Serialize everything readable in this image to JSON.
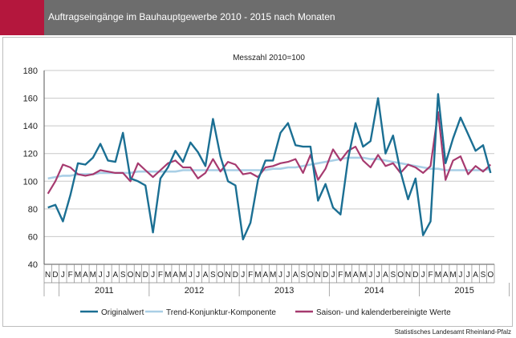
{
  "header": {
    "title": "Auftragseingänge im Bauhauptgewerbe 2010 - 2015 nach Monaten"
  },
  "source": "Statistisches Landesamt Rheinland-Pfalz",
  "colors": {
    "header_bg": "#6d6d6d",
    "accent": "#b4173d",
    "original": "#1b6f93",
    "trend": "#a9cfe6",
    "seasonal": "#a63a6f"
  },
  "chart_data": {
    "type": "line",
    "subtitle": "Messzahl 2010=100",
    "ylim": [
      40,
      180
    ],
    "yticks": [
      40,
      60,
      80,
      100,
      120,
      140,
      160,
      180
    ],
    "grid": true,
    "legend_position": "bottom",
    "month_labels": [
      "N",
      "D",
      "J",
      "F",
      "M",
      "A",
      "M",
      "J",
      "J",
      "A",
      "S",
      "O",
      "N",
      "D",
      "J",
      "F",
      "M",
      "A",
      "M",
      "J",
      "J",
      "A",
      "S",
      "O",
      "N",
      "D",
      "J",
      "F",
      "M",
      "A",
      "M",
      "J",
      "J",
      "A",
      "S",
      "O",
      "N",
      "D",
      "J",
      "F",
      "M",
      "A",
      "M",
      "J",
      "J",
      "A",
      "S",
      "O",
      "N",
      "D",
      "J",
      "F",
      "M",
      "A",
      "M",
      "J",
      "J",
      "A",
      "S",
      "O"
    ],
    "year_labels": [
      "2011",
      "2012",
      "2013",
      "2014",
      "2015"
    ],
    "x": [
      "2010-11",
      "2010-12",
      "2011-01",
      "2011-02",
      "2011-03",
      "2011-04",
      "2011-05",
      "2011-06",
      "2011-07",
      "2011-08",
      "2011-09",
      "2011-10",
      "2011-11",
      "2011-12",
      "2012-01",
      "2012-02",
      "2012-03",
      "2012-04",
      "2012-05",
      "2012-06",
      "2012-07",
      "2012-08",
      "2012-09",
      "2012-10",
      "2012-11",
      "2012-12",
      "2013-01",
      "2013-02",
      "2013-03",
      "2013-04",
      "2013-05",
      "2013-06",
      "2013-07",
      "2013-08",
      "2013-09",
      "2013-10",
      "2013-11",
      "2013-12",
      "2014-01",
      "2014-02",
      "2014-03",
      "2014-04",
      "2014-05",
      "2014-06",
      "2014-07",
      "2014-08",
      "2014-09",
      "2014-10",
      "2014-11",
      "2014-12",
      "2015-01",
      "2015-02",
      "2015-03",
      "2015-04",
      "2015-05",
      "2015-06",
      "2015-07",
      "2015-08",
      "2015-09",
      "2015-10"
    ],
    "series": [
      {
        "name": "Originalwert",
        "values": [
          81,
          83,
          71,
          90,
          113,
          112,
          117,
          127,
          115,
          114,
          135,
          102,
          100,
          97,
          63,
          102,
          110,
          122,
          114,
          128,
          121,
          111,
          145,
          118,
          100,
          97,
          58,
          70,
          101,
          115,
          115,
          135,
          142,
          126,
          125,
          125,
          86,
          98,
          81,
          76,
          116,
          142,
          125,
          129,
          160,
          120,
          133,
          107,
          87,
          102,
          61,
          71,
          163,
          113,
          131,
          146,
          134,
          122,
          126,
          106
        ]
      },
      {
        "name": "Trend-Konjunktur-Komponente",
        "values": [
          102,
          103,
          104,
          104,
          105,
          105,
          105,
          106,
          106,
          106,
          106,
          106,
          107,
          107,
          107,
          107,
          107,
          107,
          108,
          108,
          108,
          108,
          108,
          108,
          108,
          108,
          108,
          108,
          108,
          108,
          109,
          109,
          110,
          110,
          111,
          112,
          113,
          114,
          115,
          116,
          117,
          117,
          117,
          116,
          116,
          115,
          114,
          113,
          112,
          111,
          110,
          109,
          109,
          108,
          108,
          108,
          108,
          108,
          108,
          109
        ]
      },
      {
        "name": "Saison- und kalenderbereinigte Werte",
        "values": [
          91,
          100,
          112,
          110,
          105,
          104,
          105,
          108,
          107,
          106,
          106,
          100,
          113,
          108,
          103,
          108,
          113,
          115,
          110,
          110,
          102,
          106,
          116,
          107,
          114,
          112,
          105,
          106,
          103,
          110,
          111,
          113,
          114,
          116,
          106,
          119,
          101,
          109,
          123,
          115,
          122,
          125,
          115,
          110,
          119,
          111,
          113,
          106,
          112,
          110,
          106,
          111,
          150,
          101,
          115,
          118,
          105,
          111,
          107,
          112
        ]
      }
    ]
  }
}
